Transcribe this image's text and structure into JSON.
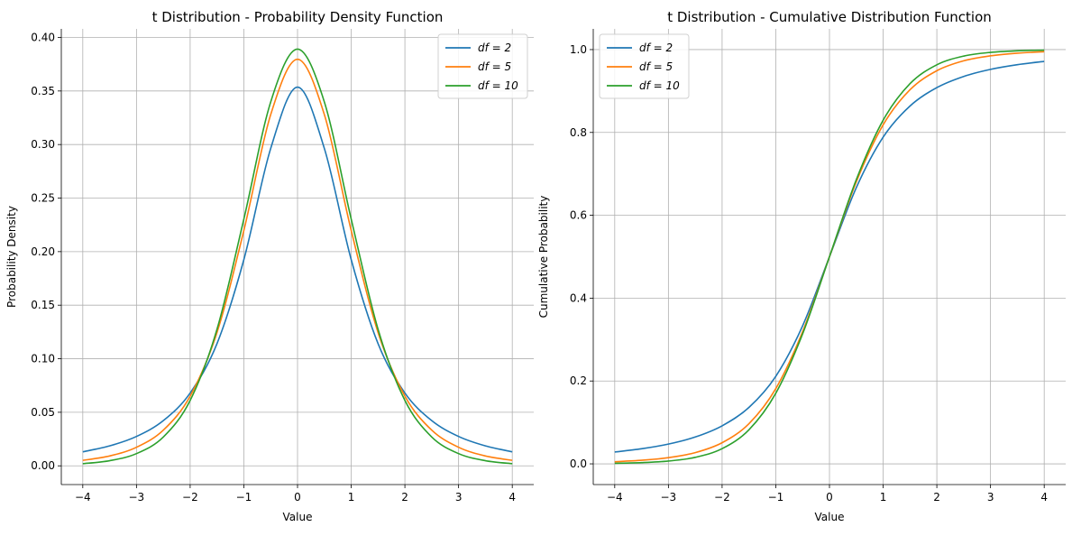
{
  "chart_data": [
    {
      "type": "line",
      "title": "t Distribution - Probability Density Function",
      "xlabel": "Value",
      "ylabel": "Probability Density",
      "xlim": [
        -4.4,
        4.4
      ],
      "ylim": [
        -0.0175,
        0.408
      ],
      "xticks": [
        -4,
        -3,
        -2,
        -1,
        0,
        1,
        2,
        3,
        4
      ],
      "xtick_labels": [
        "−4",
        "−3",
        "−2",
        "−1",
        "0",
        "1",
        "2",
        "3",
        "4"
      ],
      "yticks": [
        0,
        0.05,
        0.1,
        0.15,
        0.2,
        0.25,
        0.3,
        0.35,
        0.4
      ],
      "ytick_labels": [
        "0.00",
        "0.05",
        "0.10",
        "0.15",
        "0.20",
        "0.25",
        "0.30",
        "0.35",
        "0.40"
      ],
      "grid": true,
      "legend": "top-right",
      "x": [
        -4,
        -3.5,
        -3,
        -2.5,
        -2,
        -1.5,
        -1,
        -0.5,
        0,
        0.5,
        1,
        1.5,
        2,
        2.5,
        3,
        3.5,
        4
      ],
      "series": [
        {
          "name": "df = 2",
          "color": "#1f77b4",
          "values": [
            0.0131,
            0.0186,
            0.0274,
            0.0422,
            0.068,
            0.1141,
            0.1925,
            0.2963,
            0.3536,
            0.2963,
            0.1925,
            0.1141,
            0.068,
            0.0422,
            0.0274,
            0.0186,
            0.0131
          ]
        },
        {
          "name": "df = 5",
          "color": "#ff7f0e",
          "values": [
            0.0051,
            0.0092,
            0.0173,
            0.0333,
            0.0651,
            0.1245,
            0.2197,
            0.3279,
            0.3796,
            0.3279,
            0.2197,
            0.1245,
            0.0651,
            0.0333,
            0.0173,
            0.0092,
            0.0051
          ]
        },
        {
          "name": "df = 10",
          "color": "#2ca02c",
          "values": [
            0.002,
            0.0048,
            0.0114,
            0.0269,
            0.0611,
            0.1275,
            0.2304,
            0.3397,
            0.3891,
            0.3397,
            0.2304,
            0.1275,
            0.0611,
            0.0269,
            0.0114,
            0.0048,
            0.002
          ]
        }
      ]
    },
    {
      "type": "line",
      "title": "t Distribution - Cumulative Distribution Function",
      "xlabel": "Value",
      "ylabel": "Cumulative Probability",
      "xlim": [
        -4.4,
        4.4
      ],
      "ylim": [
        -0.05,
        1.05
      ],
      "xticks": [
        -4,
        -3,
        -2,
        -1,
        0,
        1,
        2,
        3,
        4
      ],
      "xtick_labels": [
        "−4",
        "−3",
        "−2",
        "−1",
        "0",
        "1",
        "2",
        "3",
        "4"
      ],
      "yticks": [
        0,
        0.2,
        0.4,
        0.6,
        0.8,
        1.0
      ],
      "ytick_labels": [
        "0.0",
        "0.2",
        "0.4",
        "0.6",
        "0.8",
        "1.0"
      ],
      "grid": true,
      "legend": "top-left",
      "x": [
        -4,
        -3.5,
        -3,
        -2.5,
        -2,
        -1.5,
        -1,
        -0.5,
        0,
        0.5,
        1,
        1.5,
        2,
        2.5,
        3,
        3.5,
        4
      ],
      "series": [
        {
          "name": "df = 2",
          "color": "#1f77b4",
          "values": [
            0.0286,
            0.0364,
            0.0477,
            0.0648,
            0.0918,
            0.1362,
            0.2113,
            0.3333,
            0.5,
            0.6667,
            0.7887,
            0.8638,
            0.9082,
            0.9352,
            0.9523,
            0.9636,
            0.9714
          ]
        },
        {
          "name": "df = 5",
          "color": "#ff7f0e",
          "values": [
            0.0052,
            0.0086,
            0.015,
            0.0271,
            0.051,
            0.097,
            0.1816,
            0.3191,
            0.5,
            0.6809,
            0.8184,
            0.903,
            0.949,
            0.9729,
            0.985,
            0.9914,
            0.9948
          ]
        },
        {
          "name": "df = 10",
          "color": "#2ca02c",
          "values": [
            0.0013,
            0.0029,
            0.0067,
            0.0157,
            0.0367,
            0.0823,
            0.1704,
            0.3139,
            0.5,
            0.6861,
            0.8296,
            0.9177,
            0.9633,
            0.9843,
            0.9933,
            0.9971,
            0.9987
          ]
        }
      ]
    }
  ]
}
